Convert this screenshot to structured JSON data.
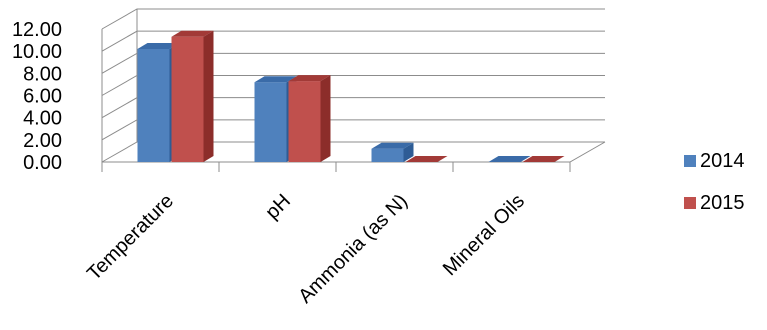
{
  "chart_data": {
    "type": "bar",
    "three_d": true,
    "categories": [
      "Temperature",
      "pH",
      "Ammonia (as N)",
      "Mineral Oils"
    ],
    "series": [
      {
        "name": "2014",
        "values": [
          10.2,
          7.2,
          1.2,
          0.0
        ],
        "color": "#4F81BD",
        "side_color": "#2E5C95",
        "top_color": "#3A6BA8"
      },
      {
        "name": "2015",
        "values": [
          11.3,
          7.3,
          0.0,
          0.0
        ],
        "color": "#C0504D",
        "side_color": "#8C2D2A",
        "top_color": "#A23A37"
      }
    ],
    "yticks": [
      "0.00",
      "2.00",
      "4.00",
      "6.00",
      "8.00",
      "10.00",
      "12.00"
    ],
    "ylim": [
      0,
      12
    ],
    "grid": true,
    "legend_position": "right",
    "title": "",
    "xlabel": "",
    "ylabel": ""
  }
}
